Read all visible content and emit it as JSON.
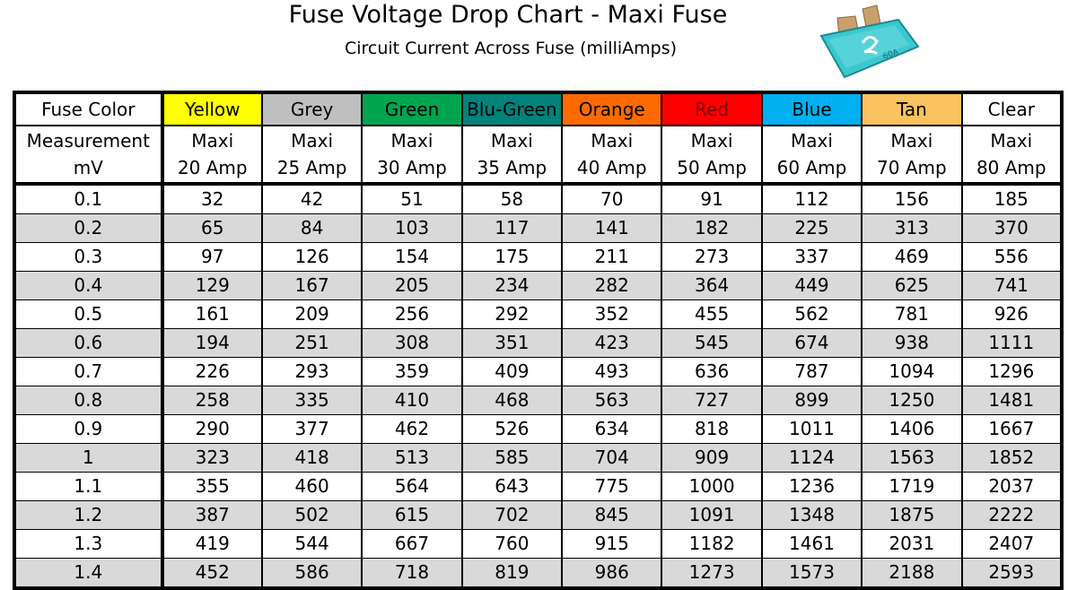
{
  "title": "Fuse Voltage Drop Chart - Maxi Fuse",
  "subtitle": "Circuit Current Across Fuse (milliAmps)",
  "table": {
    "row1_header": "Fuse Color",
    "row2_header_line1": "Measurement",
    "row2_header_line2": "mV",
    "columns": [
      {
        "color": "Yellow",
        "bg": "#ffff00",
        "fg": "#000000",
        "type": "Maxi",
        "rating": "20 Amp"
      },
      {
        "color": "Grey",
        "bg": "#bfbfbf",
        "fg": "#000000",
        "type": "Maxi",
        "rating": "25 Amp"
      },
      {
        "color": "Green",
        "bg": "#00a550",
        "fg": "#000000",
        "type": "Maxi",
        "rating": "30 Amp"
      },
      {
        "color": "Blu-Green",
        "bg": "#00827a",
        "fg": "#000000",
        "type": "Maxi",
        "rating": "35 Amp"
      },
      {
        "color": "Orange",
        "bg": "#ff6a00",
        "fg": "#000000",
        "type": "Maxi",
        "rating": "40 Amp"
      },
      {
        "color": "Red",
        "bg": "#ff0000",
        "fg": "#7a0000",
        "type": "Maxi",
        "rating": "50 Amp"
      },
      {
        "color": "Blue",
        "bg": "#00b0f0",
        "fg": "#000000",
        "type": "Maxi",
        "rating": "60 Amp"
      },
      {
        "color": "Tan",
        "bg": "#fac35f",
        "fg": "#000000",
        "type": "Maxi",
        "rating": "70 Amp"
      },
      {
        "color": "Clear",
        "bg": "#ffffff",
        "fg": "#000000",
        "type": "Maxi",
        "rating": "80 Amp"
      }
    ],
    "rows": [
      [
        "0.1",
        "32",
        "42",
        "51",
        "58",
        "70",
        "91",
        "112",
        "156",
        "185"
      ],
      [
        "0.2",
        "65",
        "84",
        "103",
        "117",
        "141",
        "182",
        "225",
        "313",
        "370"
      ],
      [
        "0.3",
        "97",
        "126",
        "154",
        "175",
        "211",
        "273",
        "337",
        "469",
        "556"
      ],
      [
        "0.4",
        "129",
        "167",
        "205",
        "234",
        "282",
        "364",
        "449",
        "625",
        "741"
      ],
      [
        "0.5",
        "161",
        "209",
        "256",
        "292",
        "352",
        "455",
        "562",
        "781",
        "926"
      ],
      [
        "0.6",
        "194",
        "251",
        "308",
        "351",
        "423",
        "545",
        "674",
        "938",
        "1111"
      ],
      [
        "0.7",
        "226",
        "293",
        "359",
        "409",
        "493",
        "636",
        "787",
        "1094",
        "1296"
      ],
      [
        "0.8",
        "258",
        "335",
        "410",
        "468",
        "563",
        "727",
        "899",
        "1250",
        "1481"
      ],
      [
        "0.9",
        "290",
        "377",
        "462",
        "526",
        "634",
        "818",
        "1011",
        "1406",
        "1667"
      ],
      [
        "1",
        "323",
        "418",
        "513",
        "585",
        "704",
        "909",
        "1124",
        "1563",
        "1852"
      ],
      [
        "1.1",
        "355",
        "460",
        "564",
        "643",
        "775",
        "1000",
        "1236",
        "1719",
        "2037"
      ],
      [
        "1.2",
        "387",
        "502",
        "615",
        "702",
        "845",
        "1091",
        "1348",
        "1875",
        "2222"
      ],
      [
        "1.3",
        "419",
        "544",
        "667",
        "760",
        "915",
        "1182",
        "1461",
        "2031",
        "2407"
      ],
      [
        "1.4",
        "452",
        "586",
        "718",
        "819",
        "986",
        "1273",
        "1573",
        "2188",
        "2593"
      ]
    ]
  },
  "fuse_image": {
    "label_number": "60A",
    "body_color": "#3cc7cf"
  }
}
